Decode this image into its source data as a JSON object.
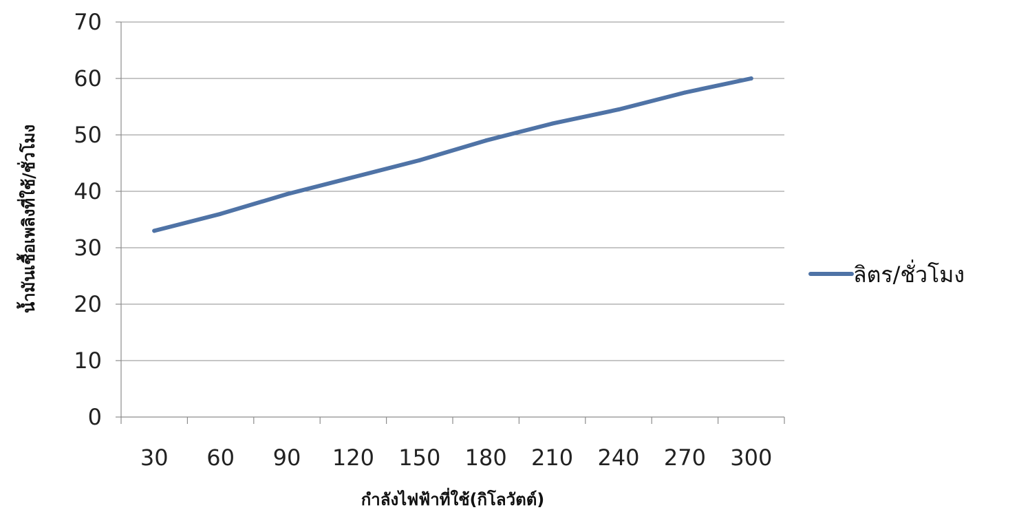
{
  "chart_data": {
    "type": "line",
    "title": "",
    "xlabel": "กำลังไฟฟ้าที่ใช้(กิโลวัตต์)",
    "ylabel": "น้ำมันเชื้อเพลิงที่ใช้/ชั่วโมง",
    "x": [
      30,
      60,
      90,
      120,
      150,
      180,
      210,
      240,
      270,
      300
    ],
    "categories": [
      "30",
      "60",
      "90",
      "120",
      "150",
      "180",
      "210",
      "240",
      "270",
      "300"
    ],
    "series": [
      {
        "name": "ลิตร/ชั่วโมง",
        "values": [
          33,
          36,
          39.5,
          42.5,
          45.5,
          49,
          52,
          54.5,
          57.5,
          60
        ],
        "color": "#4f73a6"
      }
    ],
    "ylim": [
      0,
      70
    ],
    "yticks": [
      0,
      10,
      20,
      30,
      40,
      50,
      60,
      70
    ],
    "grid": true,
    "legend_position": "right"
  }
}
